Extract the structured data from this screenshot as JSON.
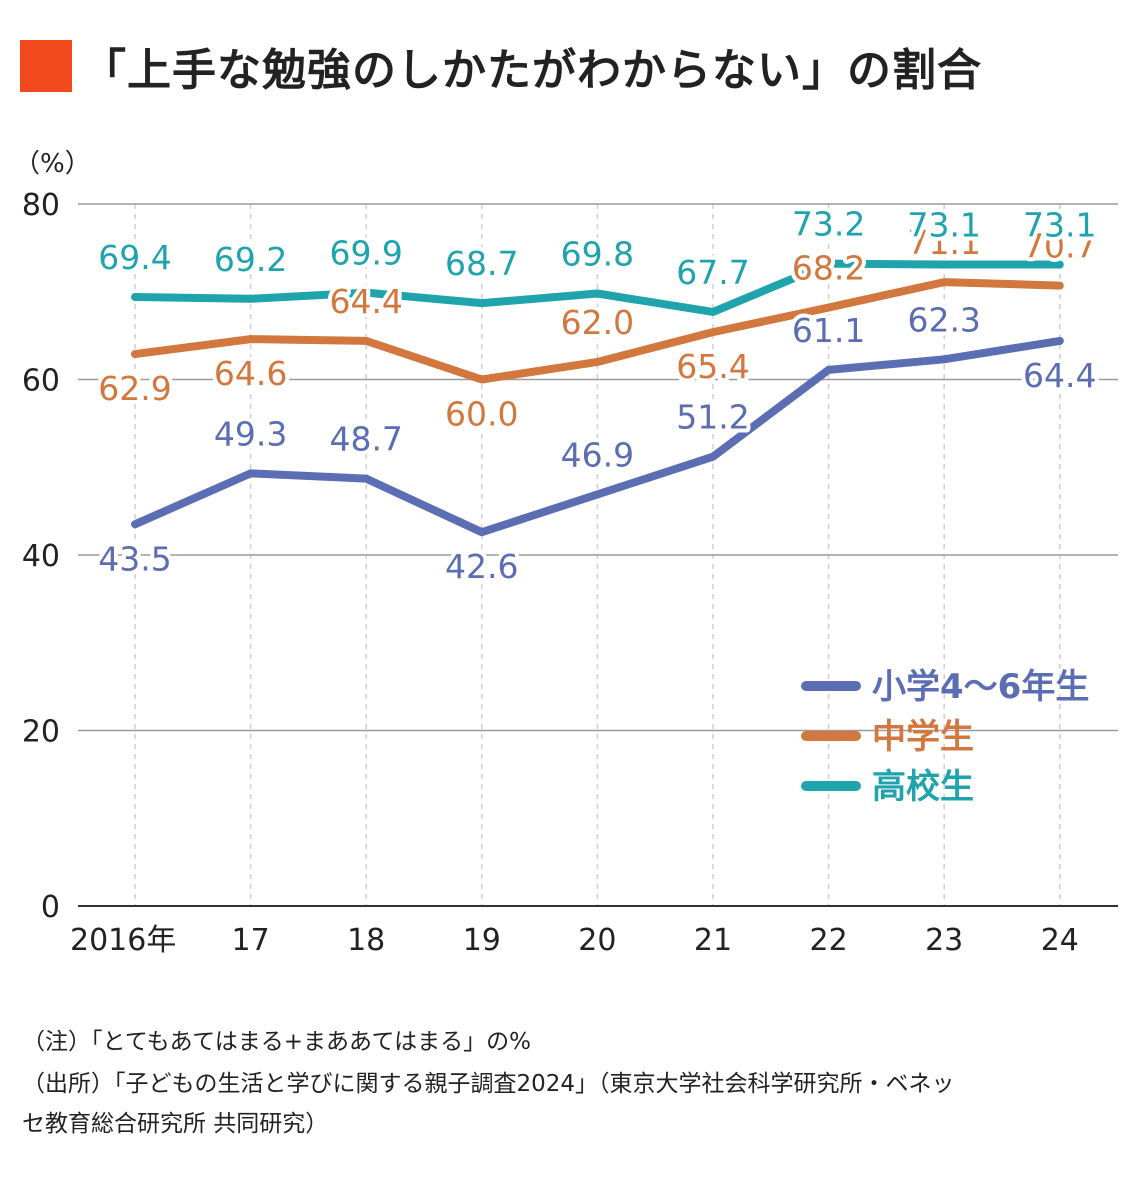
{
  "title": "「上手な勉強のしかたがわからない」の割合",
  "colors": {
    "accent": "#f24a1c",
    "elementary": "#5b6db3",
    "junior": "#d2773d",
    "high": "#1fa3ad"
  },
  "chart_data": {
    "type": "line",
    "title": "「上手な勉強のしかたがわからない」の割合",
    "ylabel": "（%）",
    "xlabel": "",
    "ylim": [
      0,
      80
    ],
    "yticks": [
      0,
      20,
      40,
      60,
      80
    ],
    "grid": true,
    "legend_position": "right",
    "categories": [
      "2016年",
      "17",
      "18",
      "19",
      "20",
      "21",
      "22",
      "23",
      "24"
    ],
    "series": [
      {
        "name": "小学4〜6年生",
        "color": "#5b6db3",
        "values": [
          43.5,
          49.3,
          48.7,
          42.6,
          46.9,
          51.2,
          61.1,
          62.3,
          64.4
        ],
        "labels": [
          "43.5",
          "49.3",
          "48.7",
          "42.6",
          "46.9",
          "51.2",
          "61.1",
          "62.3",
          "64.4"
        ]
      },
      {
        "name": "中学生",
        "color": "#d2773d",
        "values": [
          62.9,
          64.6,
          64.4,
          60.0,
          62.0,
          65.4,
          68.2,
          71.1,
          70.7
        ],
        "labels": [
          "62.9",
          "64.6",
          "64.4",
          "60.0",
          "62.0",
          "65.4",
          "68.2",
          "71.1",
          "70.7"
        ]
      },
      {
        "name": "高校生",
        "color": "#1fa3ad",
        "values": [
          69.4,
          69.2,
          69.9,
          68.7,
          69.8,
          67.7,
          73.2,
          73.1,
          73.1
        ],
        "labels": [
          "69.4",
          "69.2",
          "69.9",
          "68.7",
          "69.8",
          "67.7",
          "73.2",
          "73.1",
          "73.1"
        ]
      }
    ]
  },
  "notes": {
    "note1": "（注）「とてもあてはまる+まああてはまる」の%",
    "source1": "（出所）「子どもの生活と学びに関する親子調査2024」（東京大学社会科学研究所・ベネッ",
    "source2": "セ教育総合研究所 共同研究）"
  }
}
